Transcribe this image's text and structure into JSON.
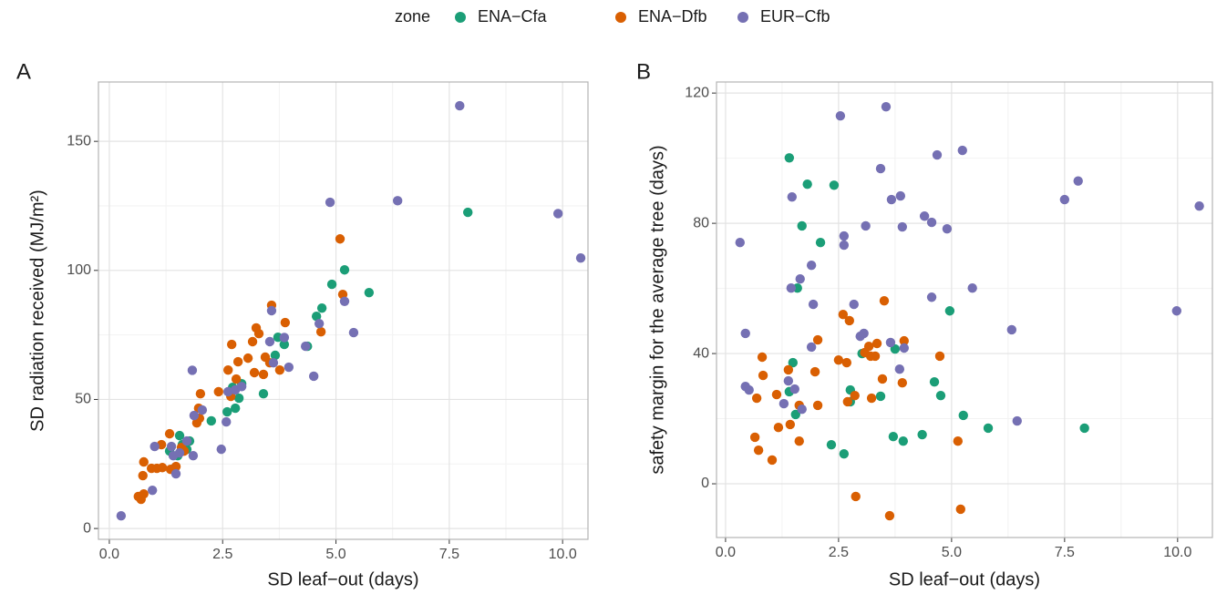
{
  "legend_title": "zone",
  "chart_data": [
    {
      "type": "scatter",
      "panel": "A",
      "x_label": "SD leaf−out (days)",
      "y_label": "SD radiation received (MJ/m²)",
      "xlim": [
        -0.24,
        10.56
      ],
      "ylim": [
        -4.2,
        173
      ],
      "xticks": [
        {
          "value": 0,
          "label": "0.0"
        },
        {
          "value": 2.5,
          "label": "2.5"
        },
        {
          "value": 5,
          "label": "5.0"
        },
        {
          "value": 7.5,
          "label": "7.5"
        },
        {
          "value": 10,
          "label": "10.0"
        }
      ],
      "yticks": [
        0,
        50,
        100,
        150
      ],
      "grid": true,
      "series": [
        {
          "name": "ENA−Cfa",
          "color": "#1b9e77",
          "x": [
            7.91,
            5.19,
            4.91,
            5.73,
            4.69,
            4.57,
            4.37,
            3.72,
            3.86,
            3.66,
            3.4,
            2.92,
            2.86,
            2.78,
            2.6,
            2.25,
            2.72,
            1.77,
            1.55,
            1.61,
            1.51,
            1.43,
            1.71,
            1.33
          ],
          "y": [
            122.5,
            100.2,
            94.6,
            91.4,
            85.4,
            82.2,
            70.6,
            74.1,
            71.3,
            67.1,
            52.2,
            56.1,
            50.5,
            46.6,
            45.2,
            41.7,
            54.7,
            33.9,
            36.0,
            32.5,
            28.2,
            23.3,
            30.7,
            30.0
          ]
        },
        {
          "name": "ENA−Dfb",
          "color": "#d95f02",
          "x": [
            5.09,
            5.15,
            3.58,
            3.88,
            4.67,
            3.24,
            3.3,
            2.7,
            3.16,
            3.44,
            3.06,
            2.84,
            3.54,
            3.76,
            2.62,
            3.2,
            3.4,
            2.8,
            2.41,
            2.68,
            2.01,
            1.97,
            1.93,
            1.99,
            1.33,
            1.15,
            1.59,
            1.65,
            0.64,
            0.7,
            0.76,
            0.74,
            0.76,
            0.93,
            1.05,
            1.17,
            1.35,
            1.47
          ],
          "y": [
            112.2,
            90.7,
            86.5,
            79.8,
            76.2,
            77.7,
            75.5,
            71.3,
            72.4,
            66.4,
            66.0,
            64.6,
            64.2,
            61.4,
            61.4,
            60.4,
            59.7,
            57.9,
            53.0,
            51.2,
            52.2,
            46.6,
            40.9,
            42.7,
            36.7,
            32.5,
            31.4,
            30.0,
            12.4,
            11.3,
            13.4,
            20.5,
            25.8,
            23.3,
            23.3,
            23.6,
            22.9,
            24.0
          ]
        },
        {
          "name": "EUR−Cfb",
          "color": "#7570b3",
          "x": [
            0.26,
            7.73,
            6.36,
            4.87,
            9.9,
            10.4,
            5.19,
            4.63,
            5.39,
            3.58,
            3.86,
            4.33,
            3.96,
            4.51,
            3.54,
            3.62,
            1.83,
            2.47,
            2.58,
            2.62,
            2.05,
            1.87,
            1.85,
            1.0,
            0.95,
            1.47,
            1.37,
            1.41,
            1.55,
            1.71,
            2.78,
            2.92
          ],
          "y": [
            4.9,
            163.8,
            127,
            126.4,
            122,
            104.8,
            88,
            79.4,
            75.9,
            84.4,
            74,
            70.6,
            62.5,
            59,
            72.4,
            64.2,
            61.3,
            30.7,
            41.3,
            53,
            45.9,
            43.8,
            28.2,
            31.8,
            14.8,
            21.2,
            31.8,
            28.2,
            29.3,
            33.9,
            53.7,
            55
          ]
        }
      ]
    },
    {
      "type": "scatter",
      "panel": "B",
      "x_label": "SD leaf−out (days)",
      "y_label": "safety margin for the average tree (days)",
      "xlim": [
        -0.2,
        10.77
      ],
      "ylim": [
        -16.5,
        123.4
      ],
      "xticks": [
        {
          "value": 0,
          "label": "0.0"
        },
        {
          "value": 2.5,
          "label": "2.5"
        },
        {
          "value": 5,
          "label": "5.0"
        },
        {
          "value": 7.5,
          "label": "7.5"
        },
        {
          "value": 10,
          "label": "10.0"
        }
      ],
      "yticks": [
        0,
        40,
        80,
        120
      ],
      "grid": true,
      "series": [
        {
          "name": "ENA−Cfa",
          "color": "#1b9e77",
          "x": [
            1.41,
            1.81,
            1.69,
            2.1,
            1.59,
            2.4,
            1.49,
            1.41,
            1.55,
            2.34,
            2.62,
            2.76,
            2.76,
            3.02,
            3.43,
            3.75,
            3.71,
            3.93,
            4.35,
            4.96,
            4.62,
            4.76,
            5.26,
            5.81,
            7.94
          ],
          "y": [
            100.1,
            92,
            79.2,
            74.1,
            60.1,
            91.7,
            37.2,
            28.3,
            21.3,
            12.0,
            9.2,
            28.8,
            25.2,
            40.0,
            26.9,
            41.4,
            14.5,
            13.1,
            15.1,
            53.1,
            31.3,
            27.1,
            21.0,
            17.1,
            17.1
          ]
        },
        {
          "name": "ENA−Dfb",
          "color": "#d95f02",
          "x": [
            0.69,
            0.65,
            0.73,
            0.81,
            0.83,
            1.03,
            1.13,
            1.17,
            1.39,
            1.43,
            1.63,
            1.63,
            1.98,
            2.04,
            2.04,
            2.5,
            2.6,
            2.68,
            2.7,
            2.74,
            2.86,
            2.88,
            3.08,
            3.17,
            3.21,
            3.31,
            3.23,
            3.35,
            3.47,
            3.51,
            3.63,
            3.91,
            3.95,
            4.74,
            5.14,
            5.2
          ],
          "y": [
            26.3,
            14.3,
            10.3,
            38.9,
            33.3,
            7.3,
            27.4,
            17.3,
            35.0,
            18.2,
            24.1,
            13.1,
            34.4,
            24.1,
            44.2,
            38.0,
            52.0,
            37.2,
            25.2,
            50.1,
            27.1,
            -3.9,
            40.3,
            42.2,
            39.2,
            39.2,
            26.3,
            43.1,
            32.2,
            56.2,
            -9.8,
            31.0,
            43.9,
            39.2,
            13.1,
            -7.8
          ]
        },
        {
          "name": "EUR−Cfb",
          "color": "#7570b3",
          "x": [
            0.32,
            0.44,
            0.44,
            0.52,
            1.29,
            1.39,
            1.45,
            1.47,
            1.53,
            1.65,
            1.69,
            1.9,
            1.94,
            1.9,
            2.54,
            2.62,
            2.62,
            2.84,
            2.98,
            3.06,
            3.1,
            3.55,
            3.43,
            3.65,
            3.67,
            3.87,
            3.91,
            3.95,
            3.85,
            4.4,
            4.56,
            4.68,
            4.9,
            4.56,
            5.24,
            5.46,
            6.33,
            6.45,
            7.5,
            7.8,
            9.98,
            10.48
          ],
          "y": [
            74.1,
            46.2,
            29.9,
            28.8,
            24.6,
            31.6,
            60.1,
            88.1,
            29.1,
            62.9,
            22.9,
            67.1,
            55.1,
            42.0,
            113,
            76.1,
            73.3,
            55.1,
            45.3,
            46.2,
            79.2,
            115.8,
            96.8,
            43.4,
            87.3,
            88.4,
            78.9,
            41.7,
            35.2,
            82.2,
            80.3,
            101,
            78.3,
            57.3,
            102.4,
            60.1,
            47.3,
            19.3,
            87.3,
            93,
            53.1,
            85.3
          ]
        }
      ]
    }
  ]
}
